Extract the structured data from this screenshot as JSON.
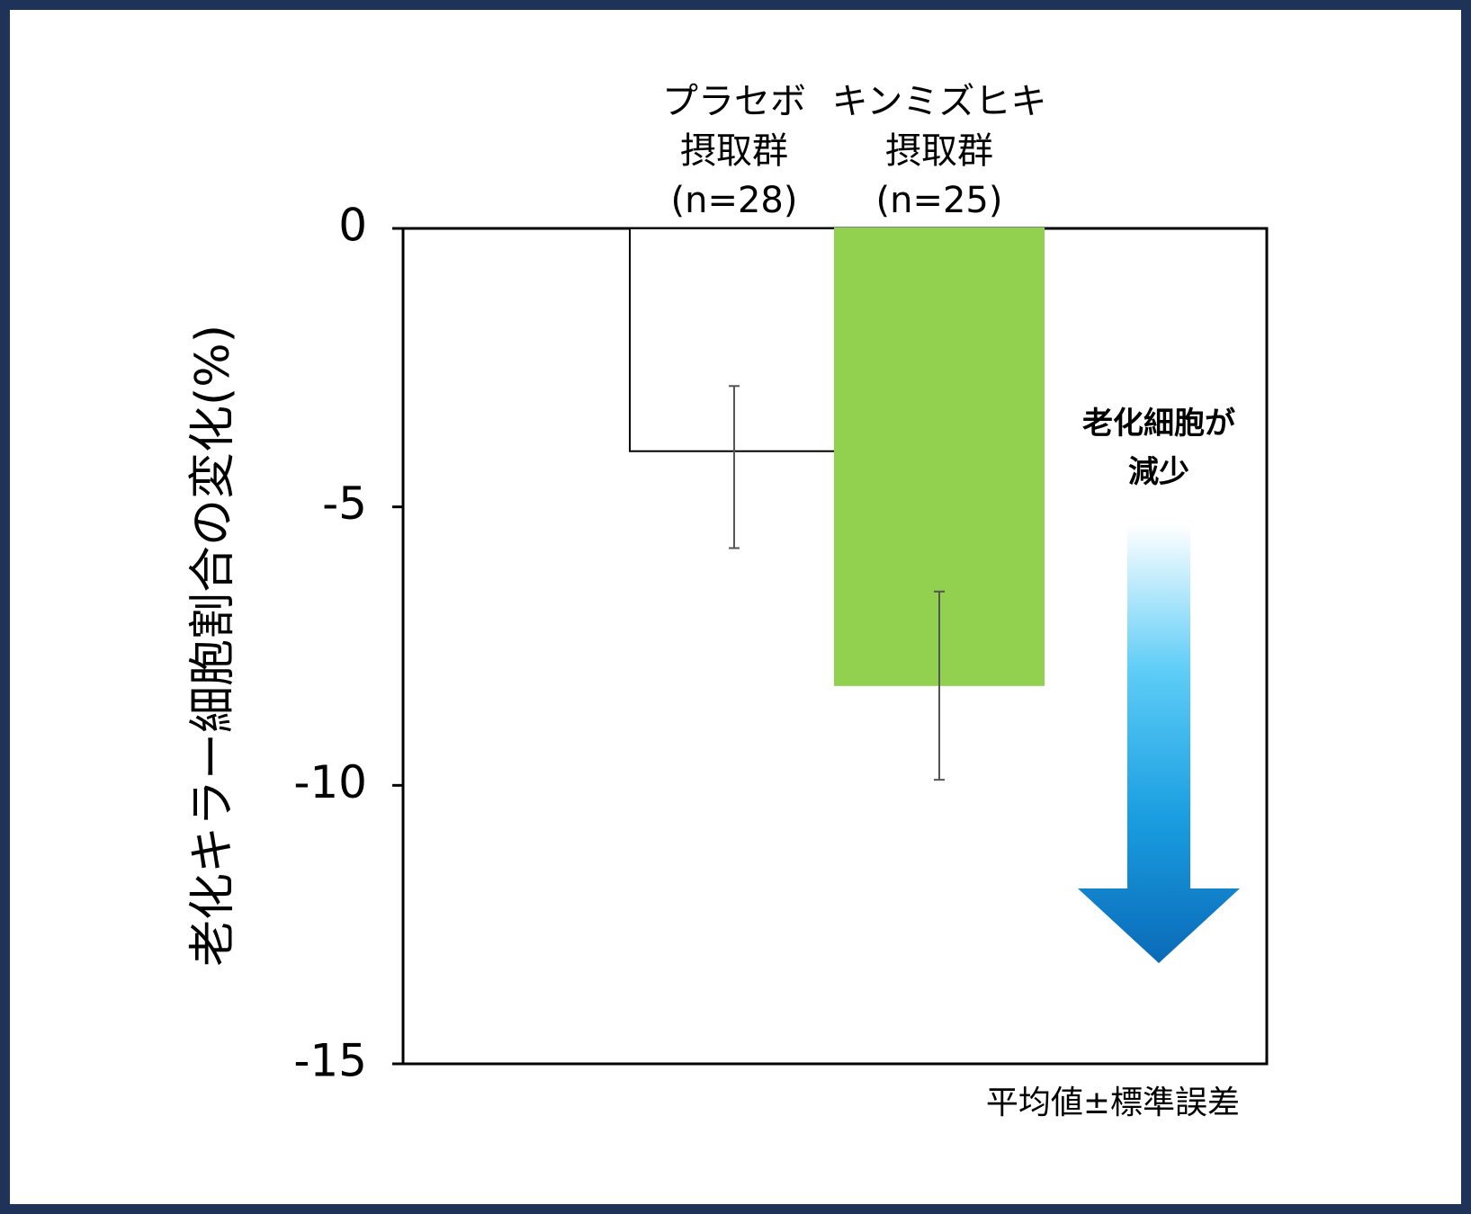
{
  "chart_data": {
    "type": "bar",
    "categories": [
      [
        "プラセボ",
        "摂取群",
        "(n=28)"
      ],
      [
        "キンミズヒキ",
        "摂取群",
        "(n=25)"
      ]
    ],
    "values": [
      -4.0,
      -8.2
    ],
    "error_bars": [
      [
        -2.83,
        -5.74
      ],
      [
        -6.52,
        -9.9
      ]
    ],
    "ylabel": "老化キラー細胞割合の変化(%)",
    "ylim": [
      -15,
      0
    ],
    "yticks": [
      0,
      -5,
      -10,
      -15
    ],
    "ytick_labels": [
      "0",
      "-5",
      "-10",
      "-15"
    ],
    "grid": false,
    "bar_colors": [
      "#ffffff",
      "#92d050"
    ],
    "bar_edge_colors": [
      "#000000",
      "#92d050"
    ],
    "annotation": {
      "lines": [
        "老化細胞が",
        "減少"
      ],
      "arrow": "down-arrow-icon",
      "arrow_gradient": [
        "#ffffff",
        "#5ecdf7",
        "#1a9ee0",
        "#0a6ab8"
      ]
    },
    "note": "平均値±標準誤差"
  }
}
